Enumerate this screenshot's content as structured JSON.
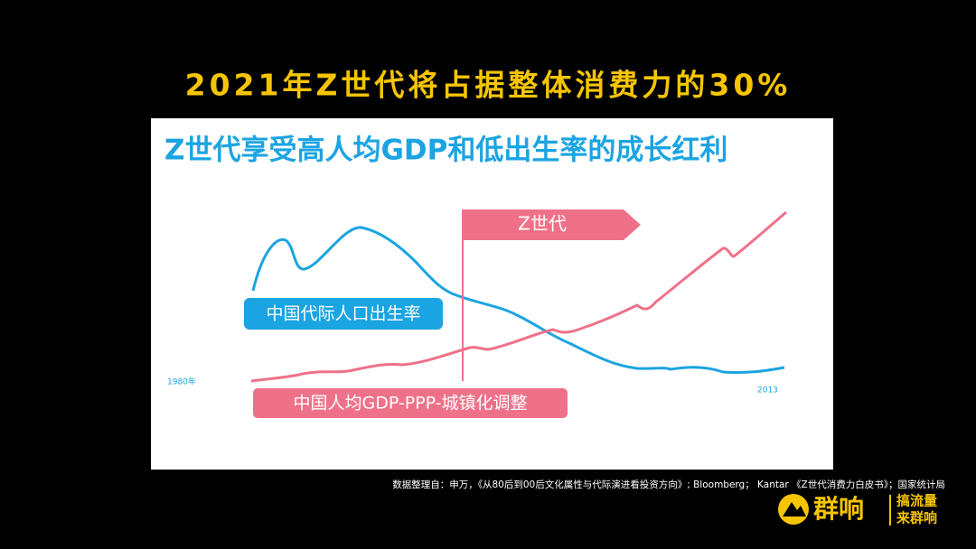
{
  "slide": {
    "title": "2021年Z世代将占据整体消费力的30%",
    "panel": {
      "title": "Z世代享受高人均GDP和低出生率的成长红利",
      "flag_label": "Z世代",
      "birth_rate_label": "中国代际人口出生率",
      "gdp_label": "中国人均GDP-PPP-城镇化调整",
      "start_label": "1980年",
      "end_label": "2013"
    },
    "source": "数据整理自：申万，《从80后到00后文化属性与代际演进看投资方向》; Bloomberg； Kantar 《Z世代消费力白皮书》；国家统计局",
    "logo": {
      "brand": "群响",
      "slogan": [
        "搞流量",
        "来群响"
      ]
    }
  }
}
